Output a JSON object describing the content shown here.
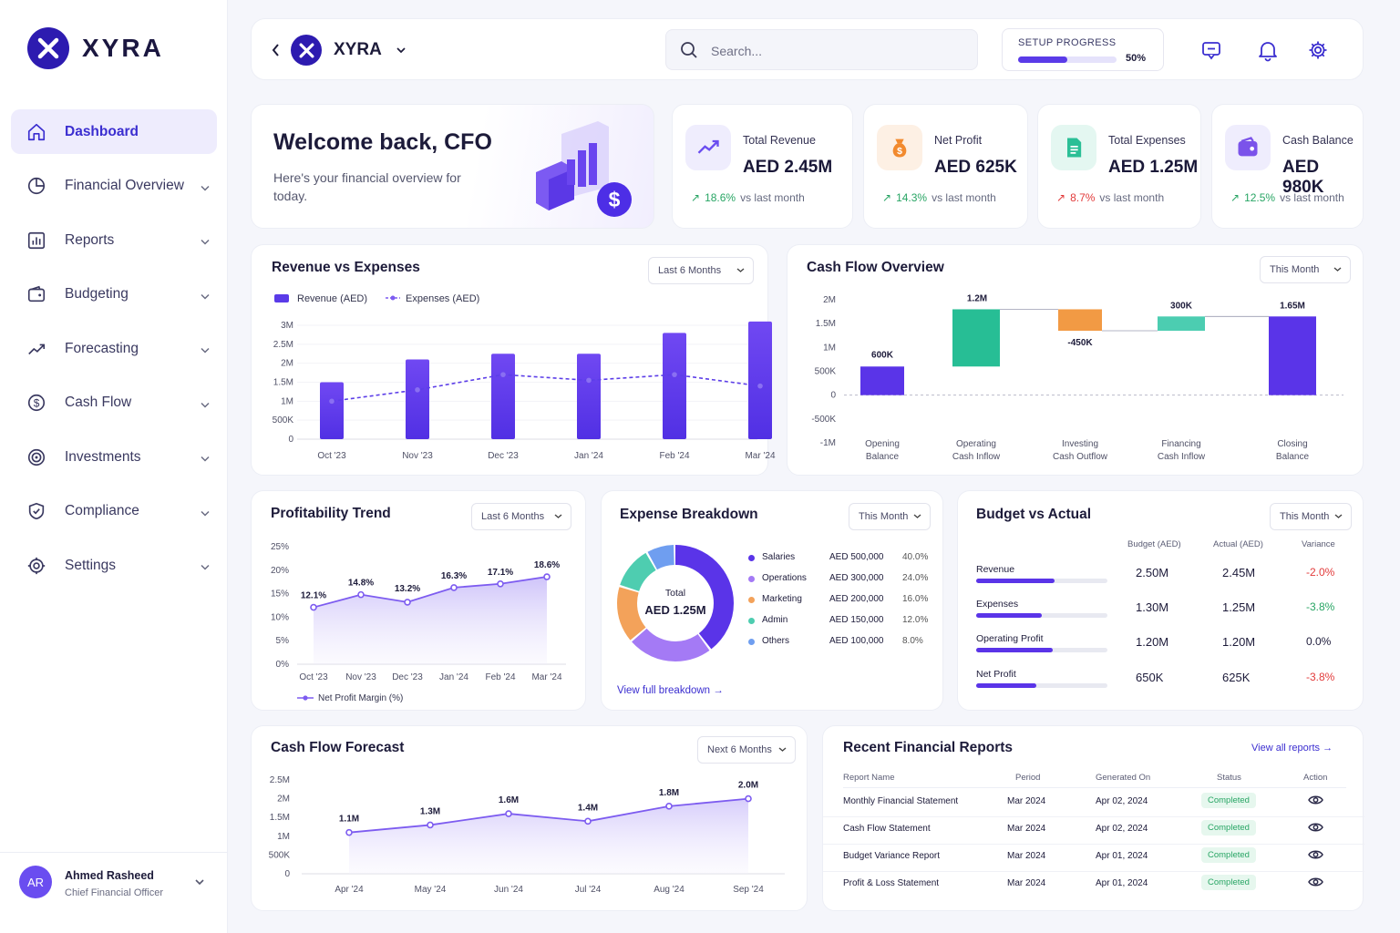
{
  "brand": {
    "name": "XYRA"
  },
  "sidebar": {
    "items": [
      {
        "label": "Dashboard",
        "icon": "home-icon",
        "active": true
      },
      {
        "label": "Financial Overview",
        "icon": "pie-chart-icon"
      },
      {
        "label": "Reports",
        "icon": "bar-chart-icon"
      },
      {
        "label": "Budgeting",
        "icon": "wallet-icon"
      },
      {
        "label": "Forecasting",
        "icon": "trend-icon"
      },
      {
        "label": "Cash Flow",
        "icon": "dollar-circle-icon"
      },
      {
        "label": "Investments",
        "icon": "target-icon"
      },
      {
        "label": "Compliance",
        "icon": "shield-check-icon"
      },
      {
        "label": "Settings",
        "icon": "gear-icon"
      }
    ]
  },
  "user": {
    "initials": "AR",
    "name": "Ahmed Rasheed",
    "role": "Chief Financial Officer"
  },
  "topbar": {
    "company": "XYRA",
    "search_placeholder": "Search...",
    "setup_label": "SETUP PROGRESS",
    "setup_percent": "50%",
    "setup_fraction": 0.5
  },
  "welcome": {
    "title": "Welcome back, CFO",
    "subtitle": "Here's your financial overview for today."
  },
  "kpis": [
    {
      "label": "Total Revenue",
      "value": "AED 2.45M",
      "change": "18.6%",
      "change_text": "vs last month",
      "direction": "up",
      "icon": "trend-up-icon",
      "color": "#6a4df0",
      "bg": "#efedfd"
    },
    {
      "label": "Net Profit",
      "value": "AED 625K",
      "change": "14.3%",
      "change_text": "vs last month",
      "direction": "up",
      "icon": "money-bag-icon",
      "color": "#f28a2e",
      "bg": "#fdf0e4"
    },
    {
      "label": "Total Expenses",
      "value": "AED 1.25M",
      "change": "8.7%",
      "change_text": "vs last month",
      "direction": "down",
      "icon": "document-icon",
      "color": "#2bbf96",
      "bg": "#e4f7f1"
    },
    {
      "label": "Cash Balance",
      "value": "AED 980K",
      "change": "12.5%",
      "change_text": "vs last month",
      "direction": "up",
      "icon": "wallet-icon",
      "color": "#7b53ea",
      "bg": "#efedfd"
    }
  ],
  "revenue_chart": {
    "title": "Revenue vs Expenses",
    "filter": "Last 6 Months",
    "legend": [
      "Revenue (AED)",
      "Expenses (AED)"
    ],
    "y_ticks": [
      "3M",
      "2.5M",
      "2M",
      "1.5M",
      "1M",
      "500K",
      "0"
    ]
  },
  "cashflow_chart": {
    "title": "Cash Flow Overview",
    "filter": "This Month",
    "y_ticks": [
      "2M",
      "1.5M",
      "1M",
      "500K",
      "0",
      "-500K",
      "-1M"
    ],
    "labels": [
      "600K",
      "1.2M",
      "-450K",
      "300K",
      "1.65M"
    ],
    "categories": [
      [
        "Opening",
        "Balance"
      ],
      [
        "Operating",
        "Cash Inflow"
      ],
      [
        "Investing",
        "Cash Outflow"
      ],
      [
        "Financing",
        "Cash Inflow"
      ],
      [
        "Closing",
        "Balance"
      ]
    ]
  },
  "profit_chart": {
    "title": "Profitability Trend",
    "filter": "Last 6 Months",
    "legend": "Net Profit Margin (%)",
    "y_ticks": [
      "25%",
      "20%",
      "15%",
      "10%",
      "5%",
      "0%"
    ],
    "labels": [
      "12.1%",
      "14.8%",
      "13.2%",
      "16.3%",
      "17.1%",
      "18.6%"
    ]
  },
  "expense": {
    "title": "Expense Breakdown",
    "filter": "This Month",
    "total_label": "Total",
    "total_value": "AED 1.25M",
    "link": "View full breakdown",
    "rows": [
      {
        "name": "Salaries",
        "amount": "AED 500,000",
        "pct": "40.0%",
        "color": "#5a34e8"
      },
      {
        "name": "Operations",
        "amount": "AED 300,000",
        "pct": "24.0%",
        "color": "#a47af5"
      },
      {
        "name": "Marketing",
        "amount": "AED 200,000",
        "pct": "16.0%",
        "color": "#f3a25a"
      },
      {
        "name": "Admin",
        "amount": "AED 150,000",
        "pct": "12.0%",
        "color": "#4ecdb0"
      },
      {
        "name": "Others",
        "amount": "AED 100,000",
        "pct": "8.0%",
        "color": "#6f9ef0"
      }
    ]
  },
  "budget": {
    "title": "Budget vs Actual",
    "filter": "This Month",
    "headers": [
      "Budget (AED)",
      "Actual (AED)",
      "Variance"
    ],
    "rows": [
      {
        "name": "Revenue",
        "budget": "2.50M",
        "actual": "2.45M",
        "variance": "-2.0%",
        "bar": 0.6,
        "neg": true
      },
      {
        "name": "Expenses",
        "budget": "1.30M",
        "actual": "1.25M",
        "variance": "-3.8%",
        "bar": 0.5,
        "neg": false
      },
      {
        "name": "Operating Profit",
        "budget": "1.20M",
        "actual": "1.20M",
        "variance": "0.0%",
        "bar": 0.58,
        "neg": null
      },
      {
        "name": "Net Profit",
        "budget": "650K",
        "actual": "625K",
        "variance": "-3.8%",
        "bar": 0.46,
        "neg": true
      }
    ]
  },
  "forecast": {
    "title": "Cash Flow Forecast",
    "filter": "Next 6 Months",
    "y_ticks": [
      "2.5M",
      "2M",
      "1.5M",
      "1M",
      "500K",
      "0"
    ],
    "labels": [
      "1.1M",
      "1.3M",
      "1.6M",
      "1.4M",
      "1.8M",
      "2.0M"
    ]
  },
  "reports": {
    "title": "Recent Financial Reports",
    "link": "View all reports",
    "headers": [
      "Report Name",
      "Period",
      "Generated On",
      "Status",
      "Action"
    ],
    "rows": [
      {
        "name": "Monthly Financial Statement",
        "period": "Mar 2024",
        "generated": "Apr 02, 2024",
        "status": "Completed"
      },
      {
        "name": "Cash Flow Statement",
        "period": "Mar 2024",
        "generated": "Apr 02, 2024",
        "status": "Completed"
      },
      {
        "name": "Budget Variance Report",
        "period": "Mar 2024",
        "generated": "Apr 01, 2024",
        "status": "Completed"
      },
      {
        "name": "Profit & Loss Statement",
        "period": "Mar 2024",
        "generated": "Apr 01, 2024",
        "status": "Completed"
      }
    ]
  },
  "chart_data": [
    {
      "type": "bar",
      "title": "Revenue vs Expenses",
      "categories": [
        "Oct '23",
        "Nov '23",
        "Dec '23",
        "Jan '24",
        "Feb '24",
        "Mar '24"
      ],
      "series": [
        {
          "name": "Revenue (AED)",
          "type": "bar",
          "values": [
            1500000,
            2100000,
            2250000,
            2250000,
            2800000,
            3100000
          ]
        },
        {
          "name": "Expenses (AED)",
          "type": "line",
          "values": [
            1000000,
            1300000,
            1700000,
            1550000,
            1700000,
            1400000
          ]
        }
      ],
      "ylim": [
        0,
        3000000
      ],
      "legend": "top-left"
    },
    {
      "type": "bar",
      "title": "Cash Flow Overview",
      "subtype": "waterfall",
      "categories": [
        "Opening Balance",
        "Operating Cash Inflow",
        "Investing Cash Outflow",
        "Financing Cash Inflow",
        "Closing Balance"
      ],
      "values": [
        600000,
        1200000,
        -450000,
        300000,
        1650000
      ],
      "ylim": [
        -1000000,
        2000000
      ]
    },
    {
      "type": "area",
      "title": "Profitability Trend",
      "categories": [
        "Oct '23",
        "Nov '23",
        "Dec '23",
        "Jan '24",
        "Feb '24",
        "Mar '24"
      ],
      "series": [
        {
          "name": "Net Profit Margin (%)",
          "values": [
            12.1,
            14.8,
            13.2,
            16.3,
            17.1,
            18.6
          ]
        }
      ],
      "ylim": [
        0,
        25
      ]
    },
    {
      "type": "pie",
      "title": "Expense Breakdown",
      "categories": [
        "Salaries",
        "Operations",
        "Marketing",
        "Admin",
        "Others"
      ],
      "values": [
        40,
        24,
        16,
        12,
        8
      ]
    },
    {
      "type": "area",
      "title": "Cash Flow Forecast",
      "categories": [
        "Apr '24",
        "May '24",
        "Jun '24",
        "Jul '24",
        "Aug '24",
        "Sep '24"
      ],
      "values": [
        1100000,
        1300000,
        1600000,
        1400000,
        1800000,
        2000000
      ],
      "ylim": [
        0,
        2500000
      ]
    }
  ]
}
